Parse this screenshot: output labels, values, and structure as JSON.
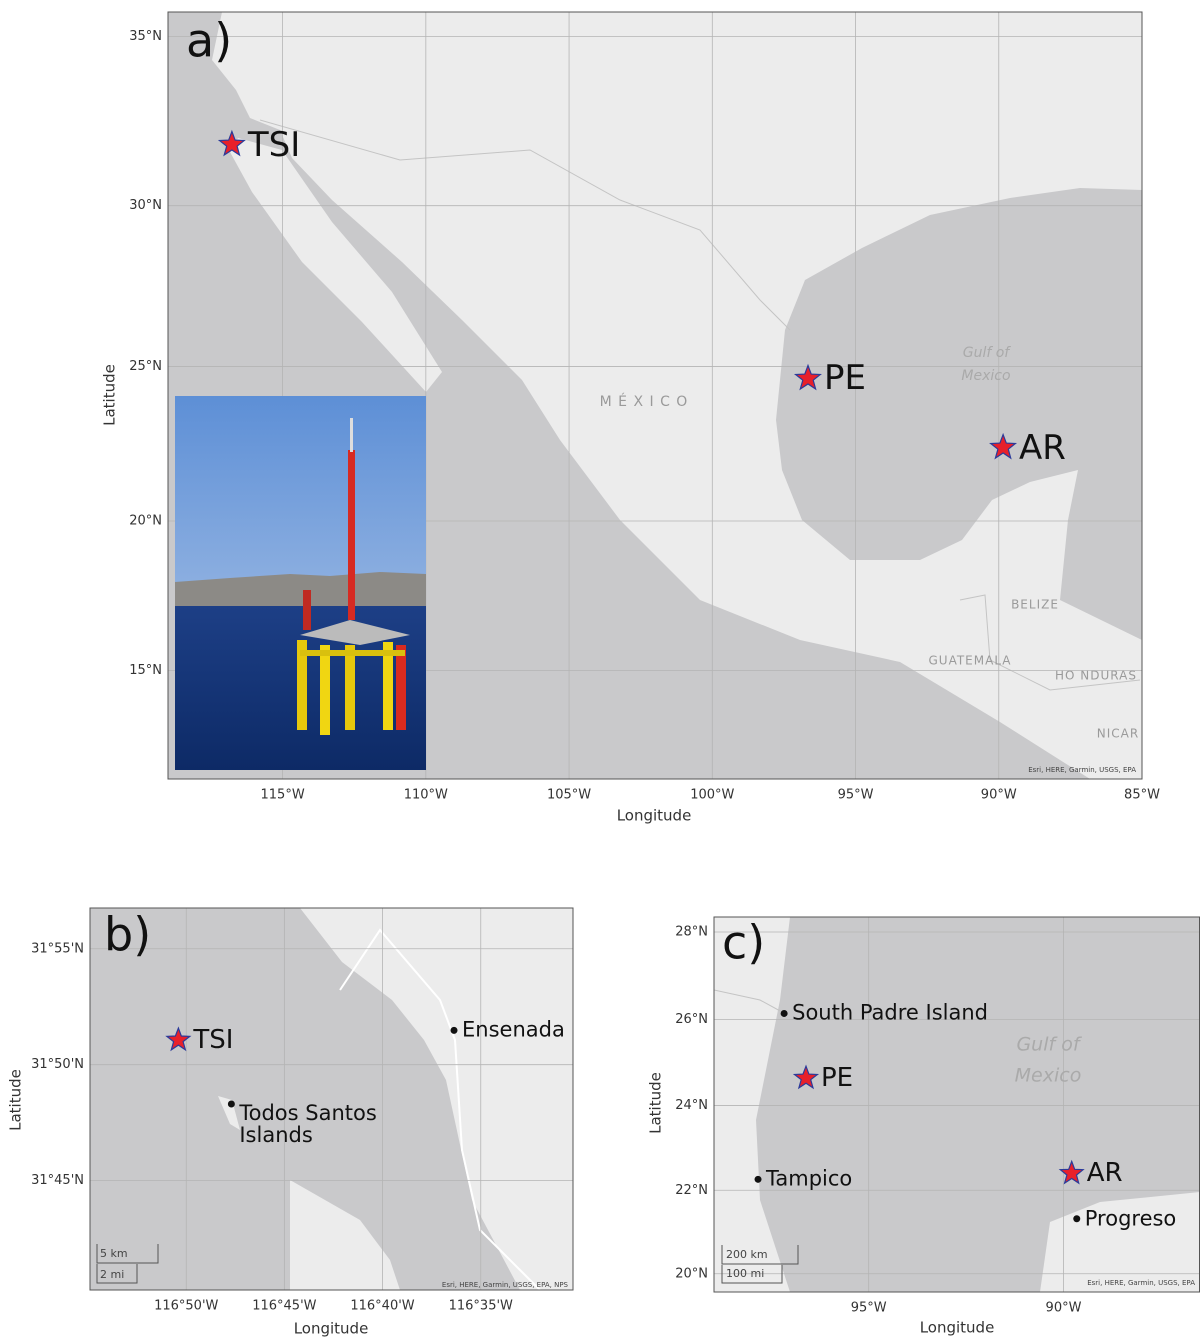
{
  "maps": [
    {
      "panel": "a)",
      "xlabel": "Longitude",
      "ylabel": "Latitude",
      "xlim": [
        -119,
        -85
      ],
      "ylim": [
        11.3,
        35.7
      ],
      "xticks": [
        {
          "value": -115,
          "label": "115°W"
        },
        {
          "value": -110,
          "label": "110°W"
        },
        {
          "value": -105,
          "label": "105°W"
        },
        {
          "value": -100,
          "label": "100°W"
        },
        {
          "value": -95,
          "label": "95°W"
        },
        {
          "value": -90,
          "label": "90°W"
        },
        {
          "value": -85,
          "label": "85°W"
        }
      ],
      "yticks": [
        {
          "value": 15,
          "label": "15°N"
        },
        {
          "value": 20,
          "label": "20°N"
        },
        {
          "value": 25,
          "label": "25°N"
        },
        {
          "value": 30,
          "label": "30°N"
        },
        {
          "value": 35,
          "label": "35°N"
        }
      ],
      "sites": [
        {
          "name": "TSI",
          "lon": -116.77,
          "lat": 31.84,
          "marker": "star"
        },
        {
          "name": "PE",
          "lon": -96.66,
          "lat": 24.62,
          "marker": "star"
        },
        {
          "name": "AR",
          "lon": -89.85,
          "lat": 22.4,
          "marker": "star"
        }
      ],
      "place_labels": [
        "M É X I C O",
        "Gulf of",
        "Mexico",
        "BELIZE",
        "GUATEMALA",
        "HO NDURAS",
        "NICAR"
      ],
      "attribution": "Esri, HERE, Garmin, USGS, EPA"
    },
    {
      "panel": "b)",
      "xlabel": "Longitude",
      "ylabel": "Latitude",
      "xlim": [
        -116.915,
        -116.505
      ],
      "ylim": [
        31.671,
        31.946
      ],
      "xticks": [
        {
          "value": -116.8333,
          "label": "116°50'W"
        },
        {
          "value": -116.75,
          "label": "116°45'W"
        },
        {
          "value": -116.6667,
          "label": "116°40'W"
        },
        {
          "value": -116.5833,
          "label": "116°35'W"
        }
      ],
      "yticks": [
        {
          "value": 31.75,
          "label": "31°45'N"
        },
        {
          "value": 31.8333,
          "label": "31°50'N"
        },
        {
          "value": 31.9167,
          "label": "31°55'N"
        }
      ],
      "sites": [
        {
          "name": "TSI",
          "lon": -116.84,
          "lat": 31.851,
          "marker": "star"
        },
        {
          "name": "Todos Santos Islands",
          "lon": -116.795,
          "lat": 31.805,
          "marker": "dot"
        },
        {
          "name": "Ensenada",
          "lon": -116.606,
          "lat": 31.858,
          "marker": "dot"
        }
      ],
      "scale_bar": [
        "5 km",
        "2 mi"
      ],
      "attribution": "Esri, HERE, Garmin, USGS, EPA, NPS"
    },
    {
      "panel": "c)",
      "xlabel": "Longitude",
      "ylabel": "Latitude",
      "xlim": [
        -98.97,
        -86.51
      ],
      "ylim": [
        19.56,
        28.34
      ],
      "xticks": [
        {
          "value": -95,
          "label": "95°W"
        },
        {
          "value": -90,
          "label": "90°W"
        }
      ],
      "yticks": [
        {
          "value": 20,
          "label": "20°N"
        },
        {
          "value": 22,
          "label": "22°N"
        },
        {
          "value": 24,
          "label": "24°N"
        },
        {
          "value": 26,
          "label": "26°N"
        },
        {
          "value": 28,
          "label": "28°N"
        }
      ],
      "sites": [
        {
          "name": "South Padre Island",
          "lon": -97.17,
          "lat": 26.14,
          "marker": "dot"
        },
        {
          "name": "PE",
          "lon": -96.61,
          "lat": 24.64,
          "marker": "star"
        },
        {
          "name": "Tampico",
          "lon": -97.84,
          "lat": 22.26,
          "marker": "dot"
        },
        {
          "name": "AR",
          "lon": -89.79,
          "lat": 22.4,
          "marker": "star"
        },
        {
          "name": "Progreso",
          "lon": -89.66,
          "lat": 21.32,
          "marker": "dot"
        }
      ],
      "place_labels": [
        "Gulf of",
        "Mexico"
      ],
      "scale_bar": [
        "200 km",
        "100 mi"
      ],
      "attribution": "Esri, HERE, Garmin, USGS, EPA"
    }
  ]
}
